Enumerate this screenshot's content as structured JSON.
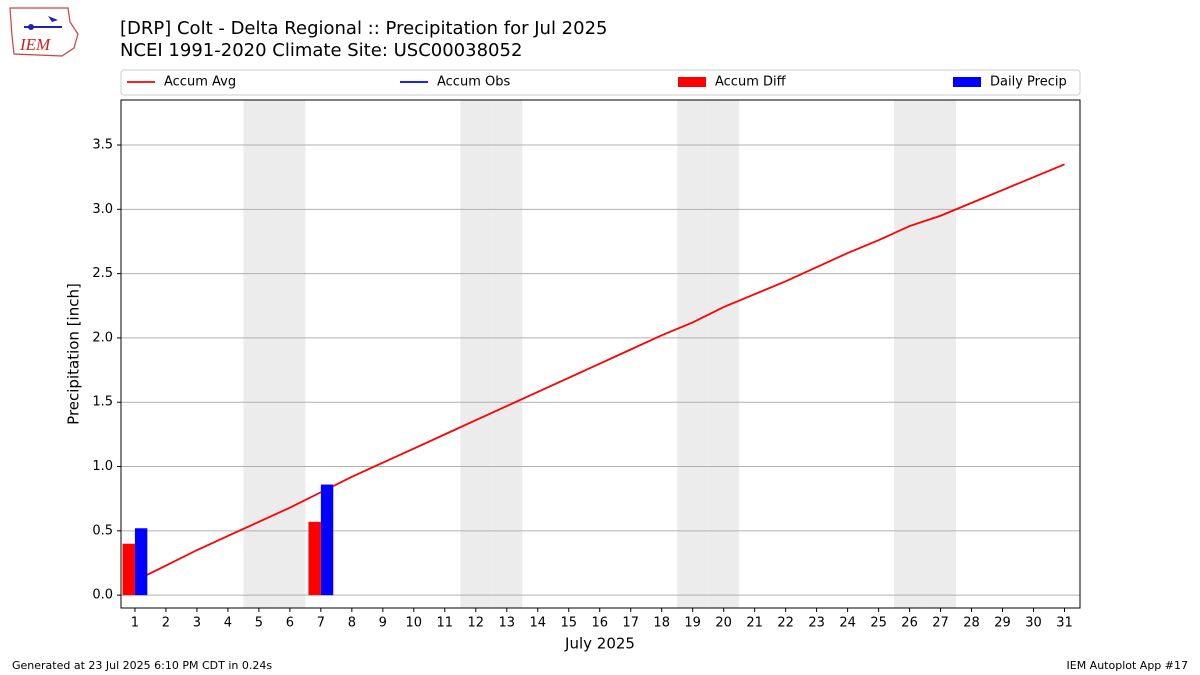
{
  "logo_text": "IEM",
  "chart_data": {
    "type": "line",
    "title": "[DRP] Colt - Delta Regional :: Precipitation for Jul 2025",
    "subtitle": "NCEI 1991-2020 Climate Site: USC00038052",
    "x_label": "July 2025",
    "y_label": "Precipitation [inch]",
    "x": [
      1,
      2,
      3,
      4,
      5,
      6,
      7,
      8,
      9,
      10,
      11,
      12,
      13,
      14,
      15,
      16,
      17,
      18,
      19,
      20,
      21,
      22,
      23,
      24,
      25,
      26,
      27,
      28,
      29,
      30,
      31
    ],
    "xlim": [
      0.55,
      31.5
    ],
    "xticks": [
      1,
      2,
      3,
      4,
      5,
      6,
      7,
      8,
      9,
      10,
      11,
      12,
      13,
      14,
      15,
      16,
      17,
      18,
      19,
      20,
      21,
      22,
      23,
      24,
      25,
      26,
      27,
      28,
      29,
      30,
      31
    ],
    "ylim": [
      -0.1,
      3.85
    ],
    "yticks": [
      {
        "value": 0,
        "label": "0.0"
      },
      0.5,
      {
        "value": 1,
        "label": "1.0"
      },
      1.5,
      {
        "value": 2,
        "label": "2.0"
      },
      2.5,
      {
        "value": 3,
        "label": "3.0"
      },
      3.5
    ],
    "grid": true,
    "shaded_days": [
      5,
      6,
      12,
      13,
      19,
      20,
      26,
      27
    ],
    "series": [
      {
        "name": "Accum Avg",
        "kind": "line",
        "color": "#ff0000",
        "values": [
          0.11,
          0.23,
          0.35,
          0.46,
          0.57,
          0.68,
          0.8,
          0.92,
          1.03,
          1.14,
          1.25,
          1.36,
          1.47,
          1.58,
          1.69,
          1.8,
          1.91,
          2.02,
          2.12,
          2.24,
          2.34,
          2.44,
          2.55,
          2.66,
          2.76,
          2.87,
          2.95,
          3.05,
          3.15,
          3.25,
          3.35
        ]
      },
      {
        "name": "Accum Obs",
        "kind": "line",
        "color": "#0000ff",
        "values": [
          null,
          null,
          null,
          null,
          null,
          null,
          null,
          null,
          null,
          null,
          null,
          null,
          null,
          null,
          null,
          null,
          null,
          null,
          null,
          null,
          null,
          null,
          null,
          null,
          null,
          null,
          null,
          null,
          null,
          null,
          null
        ]
      },
      {
        "name": "Accum Diff",
        "kind": "bar",
        "offset": "left",
        "color": "#ff0000",
        "values": [
          0.4,
          null,
          null,
          null,
          null,
          null,
          0.57,
          null,
          null,
          null,
          null,
          null,
          null,
          null,
          null,
          null,
          null,
          null,
          null,
          null,
          null,
          null,
          null,
          null,
          null,
          null,
          null,
          null,
          null,
          null,
          null
        ]
      },
      {
        "name": "Daily Precip",
        "kind": "bar",
        "offset": "right",
        "color": "#0000ff",
        "values": [
          0.52,
          null,
          null,
          null,
          null,
          null,
          0.86,
          null,
          null,
          null,
          null,
          null,
          null,
          null,
          null,
          null,
          null,
          null,
          null,
          null,
          null,
          null,
          null,
          null,
          null,
          null,
          null,
          null,
          null,
          null,
          null
        ]
      }
    ],
    "footer_left": "Generated at 23 Jul 2025 6:10 PM CDT in 0.24s",
    "footer_right": "IEM Autoplot App #17"
  }
}
